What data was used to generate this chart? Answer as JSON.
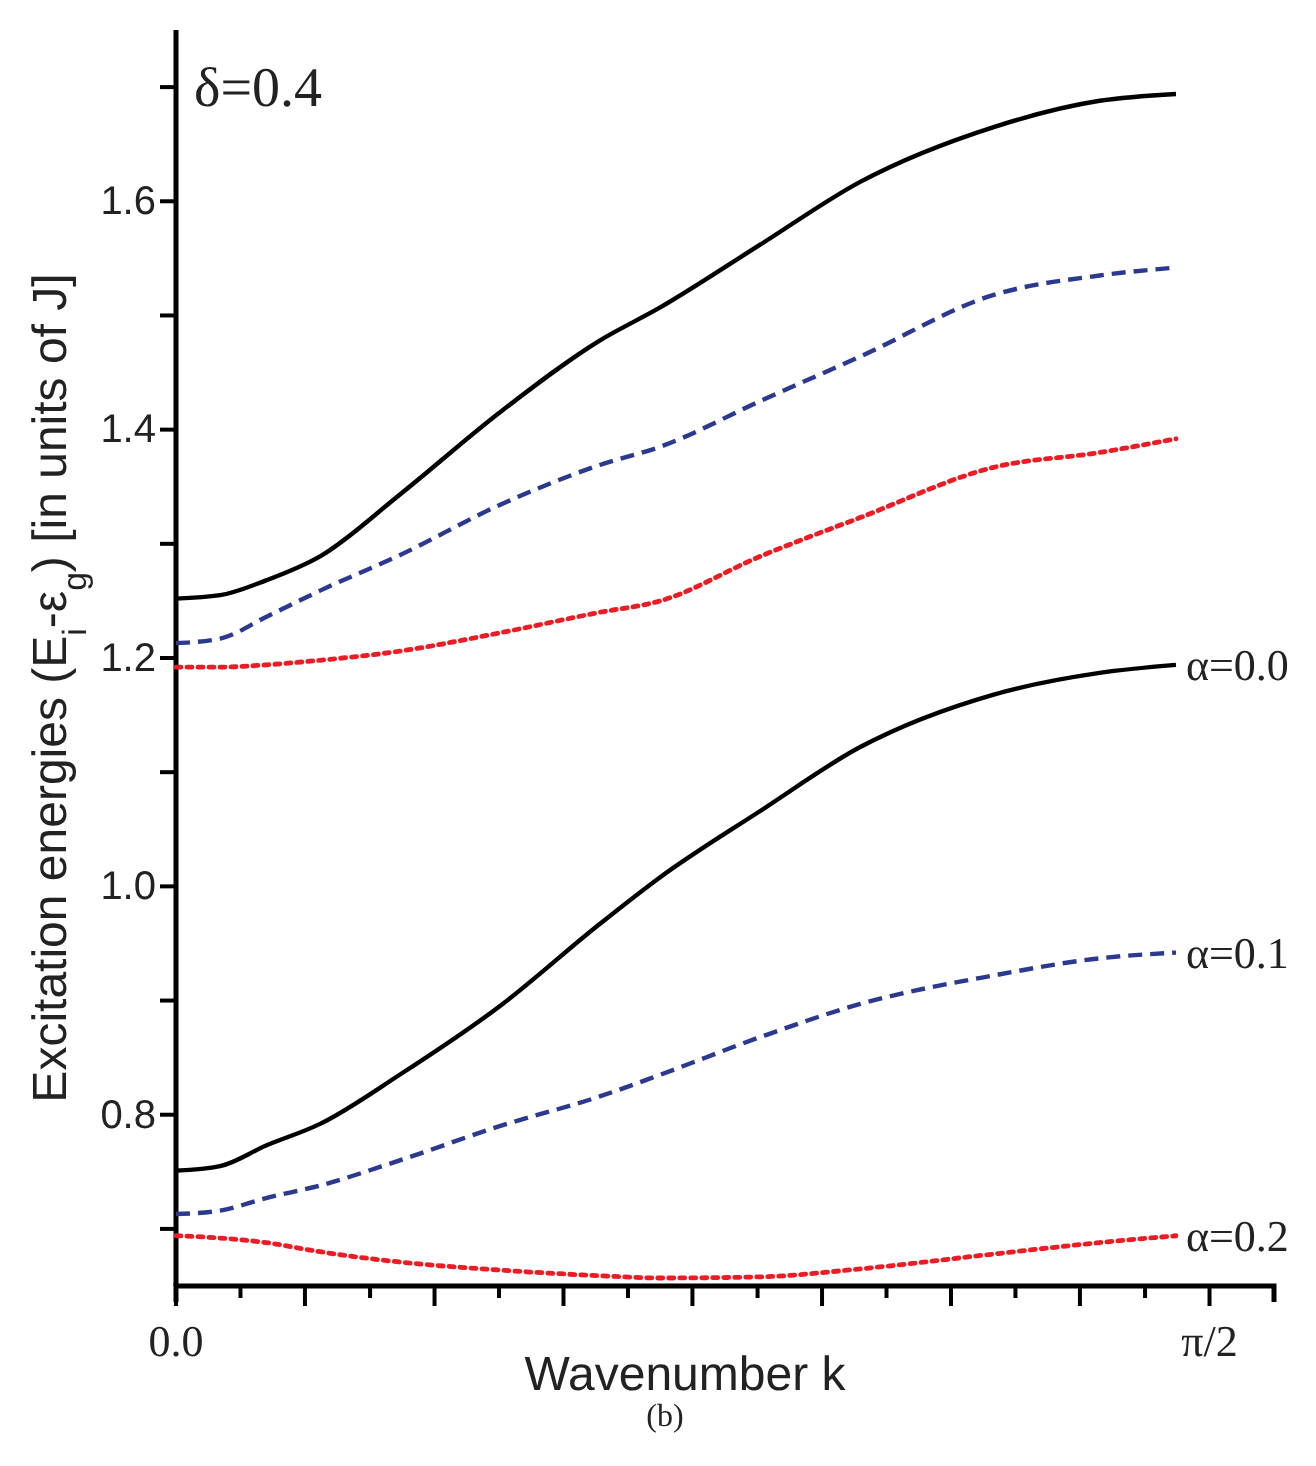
{
  "chart_data": {
    "type": "line",
    "xlabel": "Wavenumber k",
    "ylabel": "Excitation energies (E$_{i}$-ε$_{g}$) [in units of J]",
    "x": [
      0,
      0.067,
      0.137,
      0.219,
      0.34,
      0.492,
      0.644,
      0.736,
      0.888,
      1.04,
      1.243,
      1.404,
      1.52
    ],
    "series": [
      {
        "color": "#000000",
        "line_style": "solid",
        "values": [
          1.252,
          1.255,
          1.268,
          1.289,
          1.343,
          1.415,
          1.478,
          1.507,
          1.562,
          1.617,
          1.665,
          1.688,
          1.694
        ]
      },
      {
        "color": "#2b3990",
        "line_style": "dashed",
        "values": [
          1.213,
          1.217,
          1.236,
          1.259,
          1.29,
          1.334,
          1.369,
          1.385,
          1.425,
          1.464,
          1.518,
          1.535,
          1.542
        ]
      },
      {
        "color": "#ed1c24",
        "line_style": "dotted",
        "values": [
          1.192,
          1.192,
          1.194,
          1.198,
          1.206,
          1.222,
          1.24,
          1.25,
          1.289,
          1.323,
          1.367,
          1.38,
          1.392
        ]
      },
      {
        "name": "α=0.0",
        "color": "#000000",
        "line_style": "solid",
        "values": [
          0.751,
          0.755,
          0.773,
          0.792,
          0.835,
          0.895,
          0.967,
          1.008,
          1.066,
          1.122,
          1.168,
          1.187,
          1.194
        ]
      },
      {
        "name": "α=0.1",
        "color": "#2b3990",
        "line_style": "dashed",
        "values": [
          0.713,
          0.716,
          0.727,
          0.738,
          0.76,
          0.79,
          0.816,
          0.835,
          0.868,
          0.897,
          0.922,
          0.937,
          0.942
        ]
      },
      {
        "name": "α=0.2",
        "color": "#ed1c24",
        "line_style": "dotted",
        "values": [
          0.694,
          0.692,
          0.688,
          0.68,
          0.671,
          0.664,
          0.659,
          0.657,
          0.658,
          0.665,
          0.678,
          0.688,
          0.694
        ]
      }
    ],
    "xlim": [
      0,
      1.669
    ],
    "xticks": [
      {
        "value": 0,
        "label": "0.0"
      },
      {
        "value": 0.098,
        "label": null
      },
      {
        "value": 0.196,
        "label": null
      },
      {
        "value": 0.295,
        "label": null
      },
      {
        "value": 0.393,
        "label": null
      },
      {
        "value": 0.491,
        "label": null
      },
      {
        "value": 0.589,
        "label": null
      },
      {
        "value": 0.687,
        "label": null
      },
      {
        "value": 0.785,
        "label": null
      },
      {
        "value": 0.884,
        "label": null
      },
      {
        "value": 0.982,
        "label": null
      },
      {
        "value": 1.08,
        "label": null
      },
      {
        "value": 1.178,
        "label": null
      },
      {
        "value": 1.276,
        "label": null
      },
      {
        "value": 1.374,
        "label": null
      },
      {
        "value": 1.473,
        "label": null
      },
      {
        "value": 1.571,
        "label": "π/2"
      },
      {
        "value": 1.669,
        "label": null
      }
    ],
    "ylim": [
      0.65,
      1.75
    ],
    "yticks": [
      {
        "value": 0.7,
        "label": null
      },
      {
        "value": 0.8,
        "label": "0.8"
      },
      {
        "value": 0.9,
        "label": null
      },
      {
        "value": 1.0,
        "label": "1.0"
      },
      {
        "value": 1.1,
        "label": null
      },
      {
        "value": 1.2,
        "label": "1.2"
      },
      {
        "value": 1.3,
        "label": null
      },
      {
        "value": 1.4,
        "label": "1.4"
      },
      {
        "value": 1.5,
        "label": null
      },
      {
        "value": 1.6,
        "label": "1.6"
      },
      {
        "value": 1.7,
        "label": null
      }
    ],
    "grid": false,
    "legend": false,
    "annotations": [
      "δ=0.4",
      "(b)"
    ]
  }
}
